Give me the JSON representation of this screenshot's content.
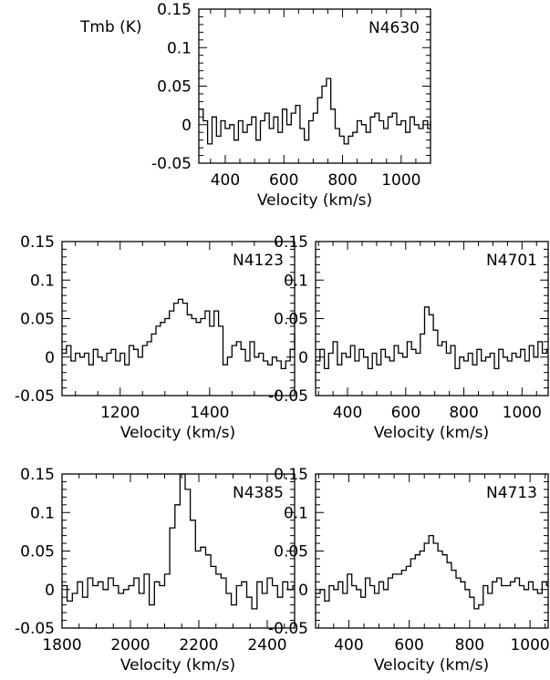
{
  "figure": {
    "y_unit_label": "Tmb (K)"
  },
  "chart_data": [
    {
      "type": "line",
      "name": "N4630",
      "xlabel": "Velocity (km/s)",
      "ylabel": "Tmb (K)",
      "xlim": [
        310,
        1100
      ],
      "ylim": [
        -0.05,
        0.15
      ],
      "xticks": [
        400,
        600,
        800,
        1000
      ],
      "yticks": [
        "-0.05",
        "0",
        "0.05",
        "0.1",
        "0.15"
      ],
      "series": [
        {
          "x": [
            310,
            325,
            340,
            355,
            370,
            385,
            400,
            415,
            430,
            445,
            460,
            475,
            490,
            505,
            520,
            535,
            550,
            565,
            580,
            595,
            610,
            625,
            640,
            655,
            670,
            685,
            700,
            715,
            730,
            745,
            760,
            775,
            790,
            805,
            820,
            835,
            850,
            865,
            880,
            895,
            910,
            925,
            940,
            955,
            970,
            985,
            1000,
            1015,
            1030,
            1045,
            1060,
            1075,
            1090,
            1100
          ],
          "y": [
            0.02,
            0.005,
            -0.025,
            0.01,
            -0.015,
            0.005,
            -0.005,
            0.0,
            -0.02,
            0.005,
            -0.01,
            0.0,
            0.01,
            -0.02,
            0.005,
            0.015,
            -0.005,
            0.01,
            -0.01,
            0.02,
            0.0,
            0.015,
            0.025,
            -0.005,
            -0.02,
            0.005,
            0.015,
            0.035,
            0.05,
            0.06,
            0.02,
            -0.005,
            -0.015,
            -0.025,
            -0.015,
            -0.01,
            0.005,
            0.0,
            -0.01,
            0.01,
            0.015,
            0.005,
            -0.005,
            0.01,
            0.015,
            0.0,
            0.005,
            -0.01,
            0.01,
            0.0,
            -0.005,
            0.005,
            -0.005,
            0.005
          ]
        }
      ],
      "annotations": [
        "N4630"
      ]
    },
    {
      "type": "line",
      "name": "N4123",
      "xlabel": "Velocity (km/s)",
      "xlim": [
        1070,
        1590
      ],
      "ylim": [
        -0.05,
        0.15
      ],
      "xticks": [
        1200,
        1400
      ],
      "yticks": [
        "-0.05",
        "0",
        "0.05",
        "0.1",
        "0.15"
      ],
      "series": [
        {
          "x": [
            1070,
            1080,
            1090,
            1100,
            1110,
            1120,
            1130,
            1140,
            1150,
            1160,
            1170,
            1180,
            1190,
            1200,
            1210,
            1220,
            1230,
            1240,
            1250,
            1260,
            1270,
            1280,
            1290,
            1300,
            1310,
            1320,
            1330,
            1340,
            1350,
            1360,
            1370,
            1380,
            1390,
            1400,
            1410,
            1420,
            1430,
            1440,
            1450,
            1460,
            1470,
            1480,
            1490,
            1500,
            1510,
            1520,
            1530,
            1540,
            1550,
            1560,
            1570,
            1580,
            1590
          ],
          "y": [
            0.005,
            0.015,
            -0.005,
            0.005,
            0.0,
            0.005,
            -0.01,
            0.01,
            0.0,
            -0.005,
            0.005,
            0.01,
            -0.005,
            0.005,
            -0.01,
            0.015,
            0.01,
            0.0,
            0.015,
            0.02,
            0.03,
            0.04,
            0.045,
            0.05,
            0.06,
            0.07,
            0.075,
            0.07,
            0.055,
            0.05,
            0.045,
            0.05,
            0.06,
            0.04,
            0.06,
            0.04,
            -0.01,
            0.0,
            0.015,
            0.02,
            0.01,
            -0.005,
            0.02,
            0.0,
            0.005,
            -0.005,
            -0.01,
            0.0,
            -0.005,
            -0.015,
            -0.005,
            0.01,
            0.03
          ]
        }
      ],
      "annotations": [
        "N4123"
      ]
    },
    {
      "type": "line",
      "name": "N4701",
      "xlabel": "Velocity (km/s)",
      "xlim": [
        290,
        1090
      ],
      "ylim": [
        -0.05,
        0.15
      ],
      "xticks": [
        400,
        600,
        800,
        1000
      ],
      "yticks": [
        "-0.05",
        "0",
        "0.05",
        "0.1",
        "0.15"
      ],
      "series": [
        {
          "x": [
            290,
            305,
            320,
            335,
            350,
            365,
            380,
            395,
            410,
            425,
            440,
            455,
            470,
            485,
            500,
            515,
            530,
            545,
            560,
            575,
            590,
            605,
            620,
            635,
            650,
            665,
            680,
            695,
            710,
            725,
            740,
            755,
            770,
            785,
            800,
            815,
            830,
            845,
            860,
            875,
            890,
            905,
            920,
            935,
            950,
            965,
            980,
            995,
            1010,
            1025,
            1040,
            1055,
            1070,
            1085
          ],
          "y": [
            -0.005,
            0.01,
            -0.015,
            0.005,
            0.02,
            -0.01,
            0.005,
            0.0,
            0.015,
            -0.005,
            0.01,
            0.0,
            -0.015,
            0.005,
            -0.01,
            0.01,
            0.0,
            -0.005,
            0.015,
            0.005,
            0.0,
            0.02,
            0.01,
            0.005,
            0.03,
            0.065,
            0.055,
            0.035,
            0.015,
            0.02,
            0.005,
            0.015,
            -0.015,
            0.0,
            -0.005,
            0.005,
            -0.01,
            0.01,
            -0.005,
            0.0,
            0.005,
            -0.015,
            0.01,
            0.0,
            -0.005,
            0.005,
            0.0,
            0.01,
            -0.005,
            0.015,
            0.0,
            0.02,
            0.005,
            0.01
          ]
        }
      ],
      "annotations": [
        "N4701"
      ]
    },
    {
      "type": "line",
      "name": "N4385",
      "xlabel": "Velocity (km/s)",
      "xlim": [
        1800,
        2480
      ],
      "ylim": [
        -0.05,
        0.15
      ],
      "xticks": [
        1800,
        2000,
        2200,
        2400
      ],
      "yticks": [
        "-0.05",
        "0",
        "0.05",
        "0.1",
        "0.15"
      ],
      "series": [
        {
          "x": [
            1800,
            1815,
            1830,
            1845,
            1860,
            1875,
            1890,
            1905,
            1920,
            1935,
            1950,
            1965,
            1980,
            1995,
            2010,
            2025,
            2040,
            2055,
            2070,
            2085,
            2100,
            2115,
            2130,
            2145,
            2160,
            2175,
            2190,
            2205,
            2220,
            2235,
            2250,
            2265,
            2280,
            2295,
            2310,
            2325,
            2340,
            2355,
            2370,
            2385,
            2400,
            2415,
            2430,
            2445,
            2460,
            2475
          ],
          "y": [
            0.005,
            -0.015,
            -0.005,
            0.01,
            -0.01,
            0.015,
            0.005,
            0.01,
            0.0,
            0.015,
            0.005,
            -0.005,
            0.0,
            0.005,
            0.015,
            -0.005,
            0.02,
            -0.02,
            0.01,
            0.005,
            0.02,
            0.08,
            0.11,
            0.15,
            0.13,
            0.09,
            0.05,
            0.055,
            0.045,
            0.03,
            0.02,
            0.015,
            -0.005,
            -0.02,
            0.005,
            0.01,
            -0.01,
            -0.025,
            0.01,
            -0.005,
            0.015,
            0.005,
            -0.01,
            0.01,
            0.0,
            0.005
          ]
        }
      ],
      "annotations": [
        "N4385"
      ]
    },
    {
      "type": "line",
      "name": "N4713",
      "xlabel": "Velocity (km/s)",
      "xlim": [
        290,
        1060
      ],
      "ylim": [
        -0.05,
        0.15
      ],
      "xticks": [
        400,
        600,
        800,
        1000
      ],
      "yticks": [
        "-0.05",
        "0",
        "0.05",
        "0.1",
        "0.15"
      ],
      "series": [
        {
          "x": [
            290,
            305,
            320,
            335,
            350,
            365,
            380,
            395,
            410,
            425,
            440,
            455,
            470,
            485,
            500,
            515,
            530,
            545,
            560,
            575,
            590,
            605,
            620,
            635,
            650,
            665,
            680,
            695,
            710,
            725,
            740,
            755,
            770,
            785,
            800,
            815,
            830,
            845,
            860,
            875,
            890,
            905,
            920,
            935,
            950,
            965,
            980,
            995,
            1010,
            1025,
            1040,
            1055
          ],
          "y": [
            -0.005,
            0.0,
            -0.015,
            0.005,
            0.0,
            0.01,
            -0.005,
            0.02,
            0.005,
            0.0,
            -0.01,
            0.015,
            0.005,
            -0.005,
            0.01,
            0.0,
            0.015,
            0.02,
            0.02,
            0.025,
            0.03,
            0.04,
            0.045,
            0.05,
            0.06,
            0.07,
            0.06,
            0.05,
            0.045,
            0.035,
            0.025,
            0.015,
            0.01,
            0.0,
            -0.01,
            -0.025,
            -0.02,
            0.005,
            -0.005,
            0.01,
            0.015,
            0.005,
            0.005,
            0.01,
            0.015,
            0.005,
            0.0,
            0.01,
            0.0,
            -0.005,
            0.01,
            0.005
          ]
        }
      ],
      "annotations": [
        "N4713"
      ]
    }
  ]
}
